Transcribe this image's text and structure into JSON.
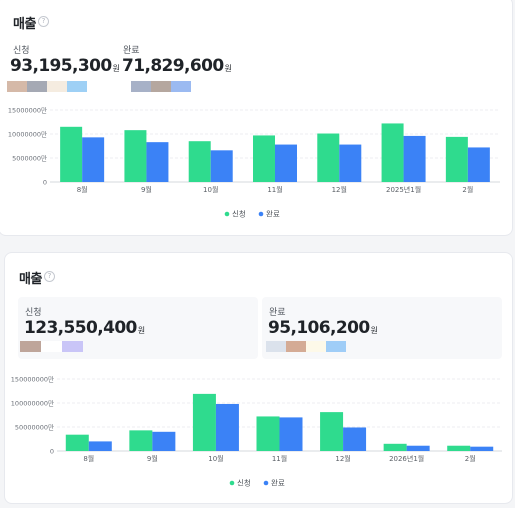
{
  "colors": {
    "applied": "#2fdb8e",
    "completed": "#3b82f6"
  },
  "card1": {
    "title": "매출",
    "help_icon": "help-circle-icon",
    "applied_label": "신청",
    "applied_value": "93,195,300",
    "completed_label": "완료",
    "completed_value": "71,829,600",
    "unit": "원",
    "applied_swatches": [
      "#d5b9a8",
      "#a5a9b4",
      "#f5ece0",
      "#9ed0f5"
    ],
    "completed_swatches": [
      "#a7b1c7",
      "#b5a79f",
      "#9bbaf1"
    ]
  },
  "card2": {
    "title": "매출",
    "help_icon": "help-circle-icon",
    "applied_label": "신청",
    "applied_value": "123,550,400",
    "completed_label": "완료",
    "completed_value": "95,106,200",
    "unit": "원",
    "applied_swatches": [
      "#bea59a",
      "#ffffff",
      "#c9c5f7"
    ],
    "completed_swatches": [
      "#dbe2ec",
      "#d4ab95",
      "#fdf9e9",
      "#9fcdf7"
    ]
  },
  "chart_data": [
    {
      "type": "bar",
      "categories": [
        "8월",
        "9월",
        "10월",
        "11월",
        "12월",
        "2025년1월",
        "2월"
      ],
      "series": [
        {
          "name": "신청",
          "values": [
            11500000,
            10800000,
            8500000,
            9700000,
            10100000,
            12200000,
            9400000
          ]
        },
        {
          "name": "완료",
          "values": [
            9300000,
            8300000,
            6600000,
            7800000,
            7800000,
            9600000,
            7200000
          ]
        }
      ],
      "ytick_labels": [
        "0",
        "5000000",
        "10000000",
        "15000000"
      ],
      "yticks": [
        0,
        5000000,
        10000000,
        15000000
      ],
      "ytick_suffix": "만",
      "ylim": [
        0,
        15000000
      ],
      "grid": true,
      "legend_position": "bottom-center"
    },
    {
      "type": "bar",
      "categories": [
        "8월",
        "9월",
        "10월",
        "11월",
        "12월",
        "2026년1월",
        "2월"
      ],
      "series": [
        {
          "name": "신청",
          "values": [
            34000000,
            43000000,
            119000000,
            72000000,
            81000000,
            15000000,
            11000000
          ]
        },
        {
          "name": "완료",
          "values": [
            20000000,
            40000000,
            98000000,
            70000000,
            49000000,
            11000000,
            9000000
          ]
        }
      ],
      "ytick_labels": [
        "0",
        "50000000",
        "100000000",
        "150000000"
      ],
      "yticks": [
        0,
        50000000,
        100000000,
        150000000
      ],
      "ytick_suffix": "만",
      "ylim": [
        0,
        150000000
      ],
      "grid": true,
      "legend_position": "bottom-center"
    }
  ]
}
